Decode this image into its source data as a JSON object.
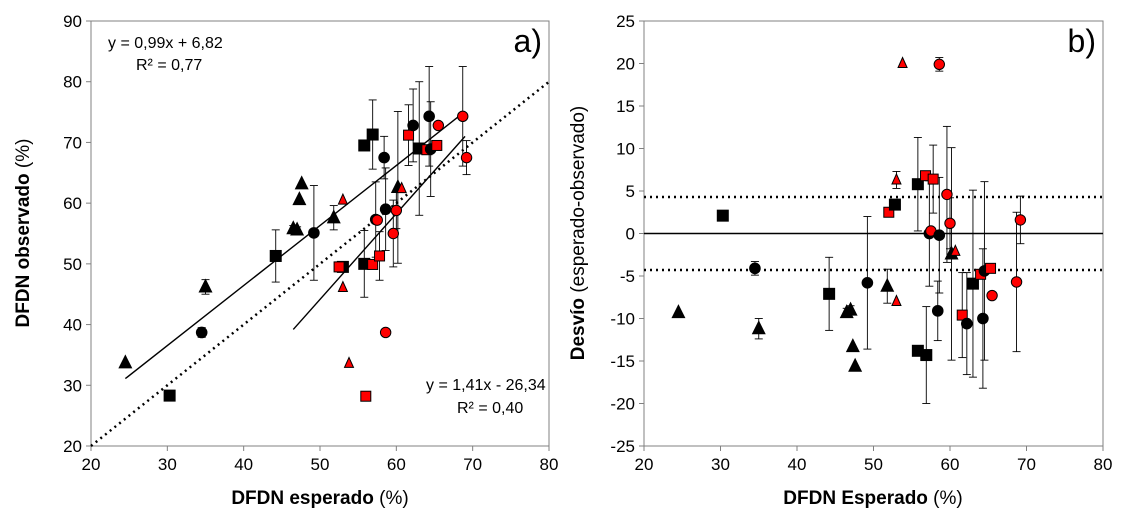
{
  "figure": {
    "colors": {
      "black": "#000000",
      "red": "#ff0000",
      "axis": "#808080"
    },
    "marker_types": [
      "square",
      "circle",
      "triangle"
    ]
  },
  "chart_data": [
    {
      "type": "scatter",
      "panel_label": "a)",
      "xlabel_bold": "DFDN esperado",
      "xlabel_unit": " (%)",
      "ylabel_bold": "DFDN observado",
      "ylabel_unit": " (%)",
      "xlim": [
        20,
        80
      ],
      "ylim": [
        20,
        90
      ],
      "xticks": [
        20,
        30,
        40,
        50,
        60,
        70,
        80
      ],
      "yticks": [
        20,
        30,
        40,
        50,
        60,
        70,
        80,
        90
      ],
      "grid": false,
      "equations": [
        {
          "line1": "y = 0,99x + 6,82",
          "line2": "R² = 0,77",
          "position": "top-left"
        },
        {
          "line1": "y = 1,41x - 26,34",
          "line2": "R² = 0,40",
          "position": "bottom-right"
        }
      ],
      "trendlines": [
        {
          "style": "solid",
          "from": [
            24.5,
            31.1
          ],
          "to": [
            69,
            75.1
          ]
        },
        {
          "style": "solid",
          "from": [
            46.5,
            39.2
          ],
          "to": [
            69,
            71.0
          ]
        }
      ],
      "reference_lines": [
        {
          "style": "dotted",
          "from": [
            20,
            20
          ],
          "to": [
            80,
            80
          ]
        }
      ],
      "points": [
        {
          "x": 24.5,
          "y": 33.7,
          "marker": "triangle",
          "color": "black"
        },
        {
          "x": 30.3,
          "y": 28.3,
          "marker": "square",
          "color": "black"
        },
        {
          "x": 34.5,
          "y": 38.7,
          "marker": "circle",
          "color": "black",
          "err": 0.8
        },
        {
          "x": 35.0,
          "y": 46.2,
          "marker": "triangle",
          "color": "black",
          "err": 1.2
        },
        {
          "x": 44.2,
          "y": 51.3,
          "marker": "square",
          "color": "black",
          "err": 4.3
        },
        {
          "x": 46.5,
          "y": 55.8,
          "marker": "triangle",
          "color": "black",
          "err": 0.5
        },
        {
          "x": 47.0,
          "y": 55.6,
          "marker": "triangle",
          "color": "black",
          "err": 0.5
        },
        {
          "x": 47.3,
          "y": 60.6,
          "marker": "triangle",
          "color": "black"
        },
        {
          "x": 47.6,
          "y": 63.2,
          "marker": "triangle",
          "color": "black"
        },
        {
          "x": 49.2,
          "y": 55.1,
          "marker": "circle",
          "color": "black",
          "err": 7.8
        },
        {
          "x": 51.8,
          "y": 57.6,
          "marker": "triangle",
          "color": "black",
          "err": 2.0
        },
        {
          "x": 53.0,
          "y": 49.5,
          "marker": "square",
          "color": "black"
        },
        {
          "x": 52.5,
          "y": 49.5,
          "marker": "square",
          "color": "red"
        },
        {
          "x": 53.0,
          "y": 46.1,
          "marker": "triangle",
          "color": "red"
        },
        {
          "x": 53.0,
          "y": 60.5,
          "marker": "triangle",
          "color": "red"
        },
        {
          "x": 53.8,
          "y": 33.6,
          "marker": "triangle",
          "color": "red"
        },
        {
          "x": 55.8,
          "y": 69.5,
          "marker": "square",
          "color": "black"
        },
        {
          "x": 55.8,
          "y": 50.0,
          "marker": "square",
          "color": "black",
          "err": 5.5
        },
        {
          "x": 56.0,
          "y": 28.2,
          "marker": "square",
          "color": "red"
        },
        {
          "x": 56.9,
          "y": 71.3,
          "marker": "square",
          "color": "black",
          "err": 5.7
        },
        {
          "x": 56.9,
          "y": 49.9,
          "marker": "square",
          "color": "red"
        },
        {
          "x": 57.3,
          "y": 57.3,
          "marker": "circle",
          "color": "black",
          "err": 6.2
        },
        {
          "x": 57.5,
          "y": 57.2,
          "marker": "circle",
          "color": "red"
        },
        {
          "x": 57.8,
          "y": 51.3,
          "marker": "square",
          "color": "red",
          "err": 4.0
        },
        {
          "x": 58.4,
          "y": 67.5,
          "marker": "circle",
          "color": "black",
          "err": 3.5
        },
        {
          "x": 58.6,
          "y": 59.0,
          "marker": "circle",
          "color": "black",
          "err": 6.8
        },
        {
          "x": 58.6,
          "y": 38.7,
          "marker": "circle",
          "color": "red"
        },
        {
          "x": 59.6,
          "y": 55.0,
          "marker": "circle",
          "color": "red",
          "err": 5.5
        },
        {
          "x": 60.0,
          "y": 58.8,
          "marker": "circle",
          "color": "red",
          "err": 3.0
        },
        {
          "x": 60.2,
          "y": 62.6,
          "marker": "triangle",
          "color": "black",
          "err": 12.5
        },
        {
          "x": 60.7,
          "y": 62.4,
          "marker": "triangle",
          "color": "red"
        },
        {
          "x": 61.6,
          "y": 71.2,
          "marker": "square",
          "color": "red",
          "err": 5.0
        },
        {
          "x": 62.2,
          "y": 72.8,
          "marker": "circle",
          "color": "black",
          "err": 6.0
        },
        {
          "x": 63.0,
          "y": 69.0,
          "marker": "square",
          "color": "black",
          "err": 11.0
        },
        {
          "x": 64.0,
          "y": 68.8,
          "marker": "square",
          "color": "red"
        },
        {
          "x": 64.3,
          "y": 74.3,
          "marker": "circle",
          "color": "black",
          "err": 8.2
        },
        {
          "x": 64.5,
          "y": 68.9,
          "marker": "circle",
          "color": "black",
          "err": 7.8
        },
        {
          "x": 65.3,
          "y": 69.5,
          "marker": "square",
          "color": "red"
        },
        {
          "x": 65.5,
          "y": 72.8,
          "marker": "circle",
          "color": "red"
        },
        {
          "x": 68.7,
          "y": 74.3,
          "marker": "circle",
          "color": "red",
          "err": 8.2
        },
        {
          "x": 69.2,
          "y": 67.5,
          "marker": "circle",
          "color": "red",
          "err": 2.8
        }
      ]
    },
    {
      "type": "scatter",
      "panel_label": "b)",
      "xlabel_bold": "DFDN Esperado",
      "xlabel_unit": " (%)",
      "ylabel_bold": "Desvío",
      "ylabel_unit": " (esperado-observado)",
      "xlim": [
        20,
        80
      ],
      "ylim": [
        -25,
        25
      ],
      "xticks": [
        20,
        30,
        40,
        50,
        60,
        70,
        80
      ],
      "yticks": [
        -25,
        -20,
        -15,
        -10,
        -5,
        0,
        5,
        10,
        15,
        20,
        25
      ],
      "grid": false,
      "reference_lines": [
        {
          "style": "solid",
          "from": [
            20,
            0
          ],
          "to": [
            80,
            0
          ]
        },
        {
          "style": "dotted",
          "from": [
            20,
            4.3
          ],
          "to": [
            80,
            4.3
          ]
        },
        {
          "style": "dotted",
          "from": [
            20,
            -4.3
          ],
          "to": [
            80,
            -4.3
          ]
        }
      ],
      "points": [
        {
          "x": 24.5,
          "y": -9.3,
          "marker": "triangle",
          "color": "black"
        },
        {
          "x": 30.3,
          "y": 2.1,
          "marker": "square",
          "color": "black"
        },
        {
          "x": 34.5,
          "y": -4.1,
          "marker": "circle",
          "color": "black",
          "err": 0.8
        },
        {
          "x": 35.0,
          "y": -11.2,
          "marker": "triangle",
          "color": "black",
          "err": 1.2
        },
        {
          "x": 44.2,
          "y": -7.1,
          "marker": "square",
          "color": "black",
          "err": 4.3
        },
        {
          "x": 46.5,
          "y": -9.3,
          "marker": "triangle",
          "color": "black",
          "err": 0.5
        },
        {
          "x": 47.0,
          "y": -9.0,
          "marker": "triangle",
          "color": "black",
          "err": 0.5
        },
        {
          "x": 47.3,
          "y": -13.3,
          "marker": "triangle",
          "color": "black"
        },
        {
          "x": 47.6,
          "y": -15.6,
          "marker": "triangle",
          "color": "black"
        },
        {
          "x": 49.2,
          "y": -5.8,
          "marker": "circle",
          "color": "black",
          "err": 7.8
        },
        {
          "x": 51.8,
          "y": -6.2,
          "marker": "triangle",
          "color": "black",
          "err": 2.0
        },
        {
          "x": 52.0,
          "y": 2.5,
          "marker": "square",
          "color": "red"
        },
        {
          "x": 52.8,
          "y": 3.4,
          "marker": "square",
          "color": "black"
        },
        {
          "x": 53.0,
          "y": 6.3,
          "marker": "triangle",
          "color": "red",
          "err": 1.0
        },
        {
          "x": 53.0,
          "y": -8.0,
          "marker": "triangle",
          "color": "red"
        },
        {
          "x": 53.8,
          "y": 20.0,
          "marker": "triangle",
          "color": "red"
        },
        {
          "x": 55.8,
          "y": 5.8,
          "marker": "square",
          "color": "black",
          "err": 5.5
        },
        {
          "x": 55.8,
          "y": -13.8,
          "marker": "square",
          "color": "black"
        },
        {
          "x": 56.8,
          "y": 6.8,
          "marker": "square",
          "color": "red"
        },
        {
          "x": 56.9,
          "y": -14.3,
          "marker": "square",
          "color": "black",
          "err": 5.7
        },
        {
          "x": 57.3,
          "y": 0.0,
          "marker": "circle",
          "color": "black",
          "err": 6.2
        },
        {
          "x": 57.5,
          "y": 0.3,
          "marker": "circle",
          "color": "red"
        },
        {
          "x": 57.8,
          "y": 6.4,
          "marker": "square",
          "color": "red",
          "err": 4.0
        },
        {
          "x": 58.4,
          "y": -9.1,
          "marker": "circle",
          "color": "black",
          "err": 3.5
        },
        {
          "x": 58.6,
          "y": -0.2,
          "marker": "circle",
          "color": "black",
          "err": 6.8
        },
        {
          "x": 58.6,
          "y": 19.9,
          "marker": "circle",
          "color": "red",
          "err": 0.8
        },
        {
          "x": 59.6,
          "y": 4.6,
          "marker": "circle",
          "color": "red",
          "err": 8.0
        },
        {
          "x": 60.0,
          "y": 1.2,
          "marker": "circle",
          "color": "red",
          "err": 3.0
        },
        {
          "x": 60.2,
          "y": -2.4,
          "marker": "triangle",
          "color": "black",
          "err": 12.5
        },
        {
          "x": 60.7,
          "y": -2.1,
          "marker": "triangle",
          "color": "red"
        },
        {
          "x": 61.6,
          "y": -9.6,
          "marker": "square",
          "color": "red",
          "err": 5.0
        },
        {
          "x": 62.2,
          "y": -10.6,
          "marker": "circle",
          "color": "black",
          "err": 6.0
        },
        {
          "x": 63.0,
          "y": -5.9,
          "marker": "square",
          "color": "black",
          "err": 11.0
        },
        {
          "x": 64.0,
          "y": -4.8,
          "marker": "square",
          "color": "red"
        },
        {
          "x": 64.3,
          "y": -10.0,
          "marker": "circle",
          "color": "black",
          "err": 8.2
        },
        {
          "x": 64.5,
          "y": -4.4,
          "marker": "circle",
          "color": "black",
          "err": 10.5
        },
        {
          "x": 65.3,
          "y": -4.1,
          "marker": "square",
          "color": "red"
        },
        {
          "x": 65.5,
          "y": -7.3,
          "marker": "circle",
          "color": "red"
        },
        {
          "x": 68.7,
          "y": -5.7,
          "marker": "circle",
          "color": "red",
          "err": 8.2
        },
        {
          "x": 69.2,
          "y": 1.6,
          "marker": "circle",
          "color": "red",
          "err": 2.8
        }
      ]
    }
  ]
}
